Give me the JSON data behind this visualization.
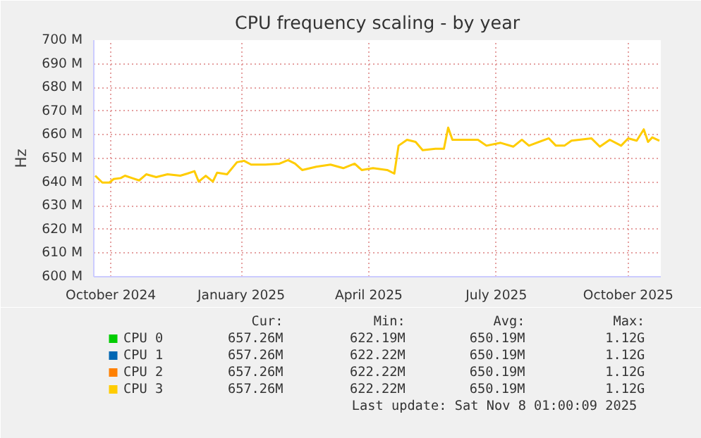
{
  "chart_data": {
    "type": "line",
    "title": "CPU frequency scaling - by year",
    "ylabel": "Hz",
    "x": [
      "2024-10-05",
      "2024-10-10",
      "2024-10-15",
      "2024-10-18",
      "2024-10-23",
      "2024-10-26",
      "2024-10-31",
      "2024-11-05",
      "2024-11-10",
      "2024-11-17",
      "2024-11-25",
      "2024-12-04",
      "2024-12-09",
      "2024-12-14",
      "2024-12-17",
      "2024-12-22",
      "2024-12-27",
      "2024-12-30",
      "2025-01-06",
      "2025-01-13",
      "2025-01-18",
      "2025-01-23",
      "2025-02-02",
      "2025-02-12",
      "2025-02-18",
      "2025-02-23",
      "2025-02-28",
      "2025-03-10",
      "2025-03-20",
      "2025-03-29",
      "2025-04-06",
      "2025-04-11",
      "2025-04-19",
      "2025-04-29",
      "2025-05-04",
      "2025-05-07",
      "2025-05-13",
      "2025-05-19",
      "2025-05-24",
      "2025-06-02",
      "2025-06-08",
      "2025-06-11",
      "2025-06-14",
      "2025-06-22",
      "2025-07-02",
      "2025-07-08",
      "2025-07-18",
      "2025-07-27",
      "2025-08-02",
      "2025-08-07",
      "2025-08-21",
      "2025-08-26",
      "2025-09-01",
      "2025-09-06",
      "2025-09-20",
      "2025-09-26",
      "2025-10-03",
      "2025-10-11",
      "2025-10-16",
      "2025-10-22",
      "2025-10-27",
      "2025-10-30",
      "2025-11-02",
      "2025-11-07"
    ],
    "series": [
      {
        "name": "CPU 0",
        "color": "#00cc00",
        "values": [
          null,
          null,
          null,
          null,
          null,
          null,
          null,
          null,
          null,
          null,
          null,
          null,
          null,
          null,
          null,
          null,
          null,
          null,
          null,
          null,
          null,
          null,
          null,
          null,
          null,
          null,
          null,
          null,
          null,
          null,
          null,
          null,
          null,
          null,
          null,
          null,
          null,
          null,
          null,
          null,
          null,
          null,
          null,
          null,
          null,
          null,
          null,
          null,
          null,
          null,
          null,
          null,
          null,
          null,
          null,
          null,
          null,
          null,
          null,
          null,
          null,
          null,
          null,
          null
        ]
      },
      {
        "name": "CPU 1",
        "color": "#0066b3",
        "values": [
          null,
          null,
          null,
          null,
          null,
          null,
          null,
          null,
          null,
          null,
          null,
          null,
          null,
          null,
          null,
          null,
          null,
          null,
          null,
          null,
          null,
          null,
          null,
          null,
          null,
          null,
          null,
          null,
          null,
          null,
          null,
          null,
          null,
          null,
          null,
          null,
          null,
          null,
          null,
          null,
          null,
          null,
          null,
          null,
          null,
          null,
          null,
          null,
          null,
          null,
          null,
          null,
          null,
          null,
          null,
          null,
          null,
          null,
          null,
          null,
          null,
          null,
          null,
          null
        ]
      },
      {
        "name": "CPU 2",
        "color": "#ff8000",
        "values": [
          null,
          null,
          null,
          null,
          null,
          null,
          null,
          null,
          null,
          null,
          null,
          null,
          null,
          null,
          null,
          null,
          null,
          null,
          null,
          null,
          null,
          null,
          null,
          null,
          null,
          null,
          null,
          null,
          null,
          null,
          null,
          null,
          null,
          null,
          null,
          null,
          null,
          null,
          null,
          null,
          null,
          null,
          null,
          null,
          null,
          null,
          null,
          null,
          null,
          null,
          null,
          null,
          null,
          null,
          null,
          null,
          null,
          null,
          null,
          null,
          null,
          null,
          null,
          null
        ]
      },
      {
        "name": "CPU 3",
        "color": "#ffcc00",
        "values": [
          642.7,
          639.8,
          639.8,
          641.3,
          641.7,
          642.7,
          641.7,
          640.7,
          643.3,
          642.1,
          643.3,
          642.7,
          643.6,
          644.6,
          640.2,
          642.7,
          640.2,
          644.0,
          643.3,
          648.4,
          649.0,
          647.4,
          647.4,
          647.8,
          649.3,
          647.8,
          645.1,
          646.5,
          647.4,
          645.9,
          647.8,
          645.1,
          645.9,
          645.1,
          643.6,
          655.4,
          657.9,
          657.0,
          653.5,
          654.1,
          654.1,
          663.0,
          657.9,
          657.9,
          657.9,
          655.4,
          656.6,
          655.0,
          657.9,
          655.4,
          658.5,
          655.4,
          655.4,
          657.5,
          658.5,
          655.0,
          657.9,
          655.4,
          658.5,
          657.5,
          662.3,
          657.0,
          658.9,
          657.5
        ]
      }
    ],
    "xlim": [
      "2024-10-04",
      "2025-11-08"
    ],
    "xticks": [
      {
        "value": "2024-10-16",
        "label": "October 2024"
      },
      {
        "value": "2025-01-16",
        "label": "January 2025"
      },
      {
        "value": "2025-04-16",
        "label": "April 2025"
      },
      {
        "value": "2025-07-15",
        "label": "July 2025"
      },
      {
        "value": "2025-10-16",
        "label": "October 2025"
      }
    ],
    "ylim": [
      600,
      700
    ],
    "yticks": [
      {
        "value": 600,
        "label": "600 M"
      },
      {
        "value": 610,
        "label": "610 M"
      },
      {
        "value": 620,
        "label": "620 M"
      },
      {
        "value": 630,
        "label": "630 M"
      },
      {
        "value": 640,
        "label": "640 M"
      },
      {
        "value": 650,
        "label": "650 M"
      },
      {
        "value": 660,
        "label": "660 M"
      },
      {
        "value": 670,
        "label": "670 M"
      },
      {
        "value": 680,
        "label": "680 M"
      },
      {
        "value": 690,
        "label": "690 M"
      },
      {
        "value": 700,
        "label": "700 M"
      }
    ],
    "grid": true,
    "legend": "bottom",
    "marker": "none",
    "line_style": "solid",
    "annotations": [
      "Cur:",
      "Min:",
      "Avg:",
      "Max:",
      "657.26M",
      "622.19M",
      "650.19M",
      "1.12G",
      "657.26M",
      "622.22M",
      "650.19M",
      "1.12G",
      "657.26M",
      "622.22M",
      "650.19M",
      "1.12G",
      "657.26M",
      "622.22M",
      "650.19M",
      "1.12G",
      "Last update: Sat Nov  8 01:00:09 2025"
    ]
  }
}
